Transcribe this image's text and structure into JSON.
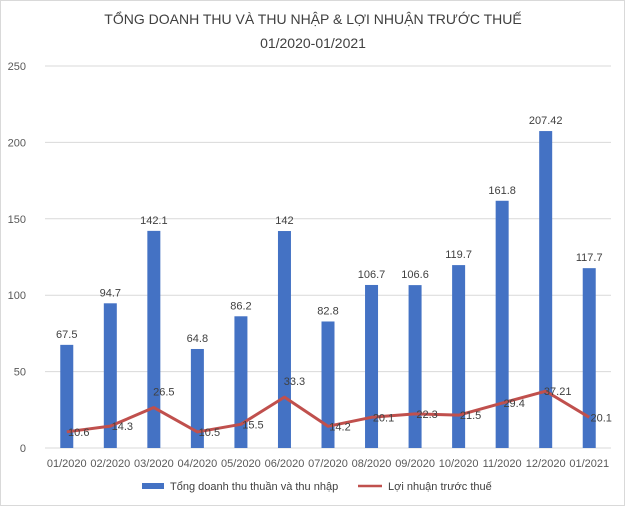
{
  "chart_data": {
    "type": "bar",
    "title": "TỔNG DOANH THU VÀ THU NHẬP & LỢI NHUẬN TRƯỚC THUẾ",
    "subtitle": "01/2020-01/2021",
    "xlabel": "",
    "ylabel": "",
    "ylim": [
      0,
      250
    ],
    "yticks": [
      "0",
      "50",
      "100",
      "150",
      "200",
      "250"
    ],
    "grid": true,
    "legend_position": "bottom",
    "categories": [
      "01/2020",
      "02/2020",
      "03/2020",
      "04/2020",
      "05/2020",
      "06/2020",
      "07/2020",
      "08/2020",
      "09/2020",
      "10/2020",
      "11/2020",
      "12/2020",
      "01/2021"
    ],
    "series": [
      {
        "name": "Tổng doanh thu thuần và thu nhập",
        "type": "bar",
        "color": "#4472c4",
        "values": [
          67.5,
          94.7,
          142.1,
          64.8,
          86.2,
          142,
          82.8,
          106.7,
          106.6,
          119.7,
          161.8,
          207.42,
          117.7
        ],
        "labels": [
          "67.5",
          "94.7",
          "142.1",
          "64.8",
          "86.2",
          "142",
          "82.8",
          "106.7",
          "106.6",
          "119.7",
          "161.8",
          "207.42",
          "117.7"
        ]
      },
      {
        "name": "Lợi nhuận trước thuế",
        "type": "line",
        "color": "#c0504d",
        "values": [
          10.6,
          14.3,
          26.5,
          10.5,
          15.5,
          33.3,
          14.2,
          20.1,
          22.3,
          21.5,
          29.4,
          37.21,
          20.1
        ],
        "labels": [
          "10.6",
          "14.3",
          "26.5",
          "10.5",
          "15.5",
          "33.3",
          "14.2",
          "20.1",
          "22.3",
          "21.5",
          "29.4",
          "37.21",
          "20.1"
        ]
      }
    ]
  }
}
